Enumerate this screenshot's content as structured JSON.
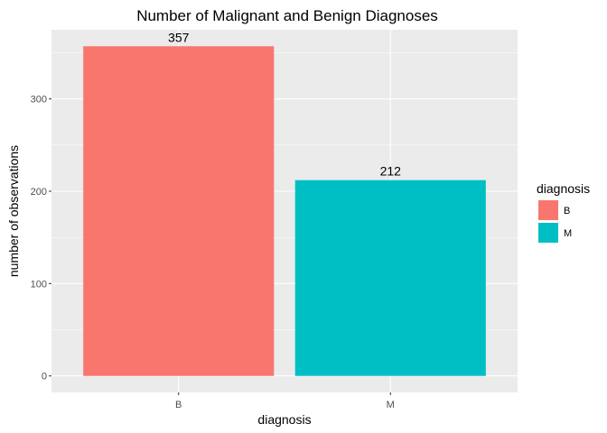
{
  "chart_data": {
    "type": "bar",
    "title": "Number of Malignant and Benign Diagnoses",
    "xlabel": "diagnosis",
    "ylabel": "number of observations",
    "categories": [
      "B",
      "M"
    ],
    "values": [
      357,
      212
    ],
    "value_labels": [
      "357",
      "212"
    ],
    "colors": [
      "#F8766D",
      "#00BFC4"
    ],
    "ylim": [
      -17.85,
      374.85
    ],
    "yticks": [
      0,
      100,
      200,
      300
    ],
    "grid": true,
    "legend": {
      "title": "diagnosis",
      "position": "right",
      "items": [
        {
          "label": "B",
          "color": "#F8766D"
        },
        {
          "label": "M",
          "color": "#00BFC4"
        }
      ]
    }
  }
}
